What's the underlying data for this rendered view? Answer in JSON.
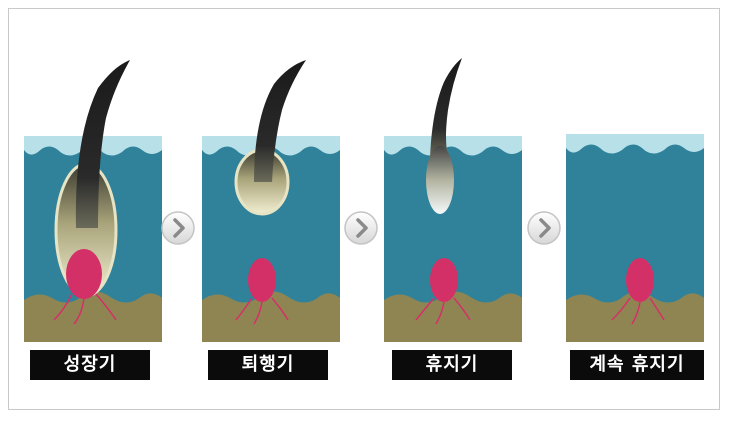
{
  "stages": [
    {
      "label": "성장기"
    },
    {
      "label": "퇴행기"
    },
    {
      "label": "휴지기"
    },
    {
      "label": "계속 휴지기"
    }
  ],
  "colors": {
    "dermis": "#2f8299",
    "surface": "#b7e0e9",
    "fat": "#8f8553",
    "papilla": "#d43068",
    "label_bg": "#0b0b0b",
    "label_text": "#ffffff"
  },
  "arrow_icon": "chevron-right-icon"
}
